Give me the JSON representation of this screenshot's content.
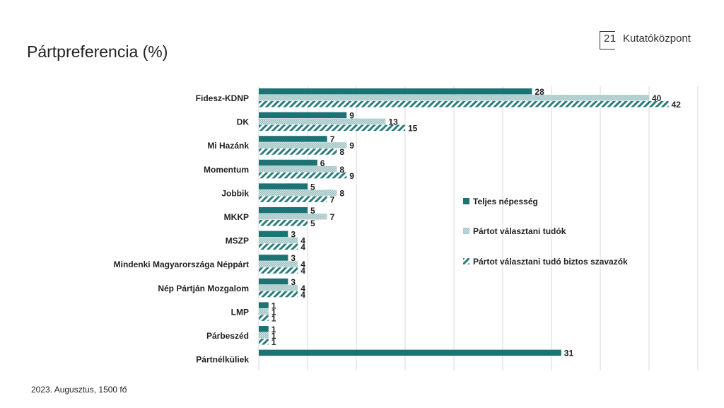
{
  "title": "Pártpreferencia (%)",
  "logo": {
    "number": "21",
    "name": "Kutatóközpont"
  },
  "footer": "2023. Augusztus, 1500 fő",
  "colors": {
    "teal": "#1d7373",
    "dots": "#8fb9b9",
    "hatch": "#2a7c7c"
  },
  "chart_data": {
    "type": "bar",
    "orientation": "horizontal",
    "title": "Pártpreferencia (%)",
    "xlim": [
      0,
      45
    ],
    "grid": true,
    "legend_position": "right",
    "categories": [
      "Fidesz-KDNP",
      "DK",
      "Mi Hazánk",
      "Momentum",
      "Jobbik",
      "MKKP",
      "MSZP",
      "Mindenki Magyarországa Néppárt",
      "Nép Pártján Mozgalom",
      "LMP",
      "Párbeszéd",
      "Pártnélküliek"
    ],
    "series": [
      {
        "name": "Teljes népesség",
        "values": [
          28,
          9,
          7,
          6,
          5,
          5,
          3,
          3,
          3,
          1,
          1,
          31
        ]
      },
      {
        "name": "Pártot választani tudók",
        "values": [
          40,
          13,
          9,
          8,
          8,
          7,
          4,
          4,
          4,
          1,
          1,
          null
        ]
      },
      {
        "name": "Pártot választani tudó biztos szavazók",
        "values": [
          42,
          15,
          8,
          9,
          7,
          5,
          4,
          4,
          4,
          1,
          1,
          null
        ]
      }
    ]
  }
}
